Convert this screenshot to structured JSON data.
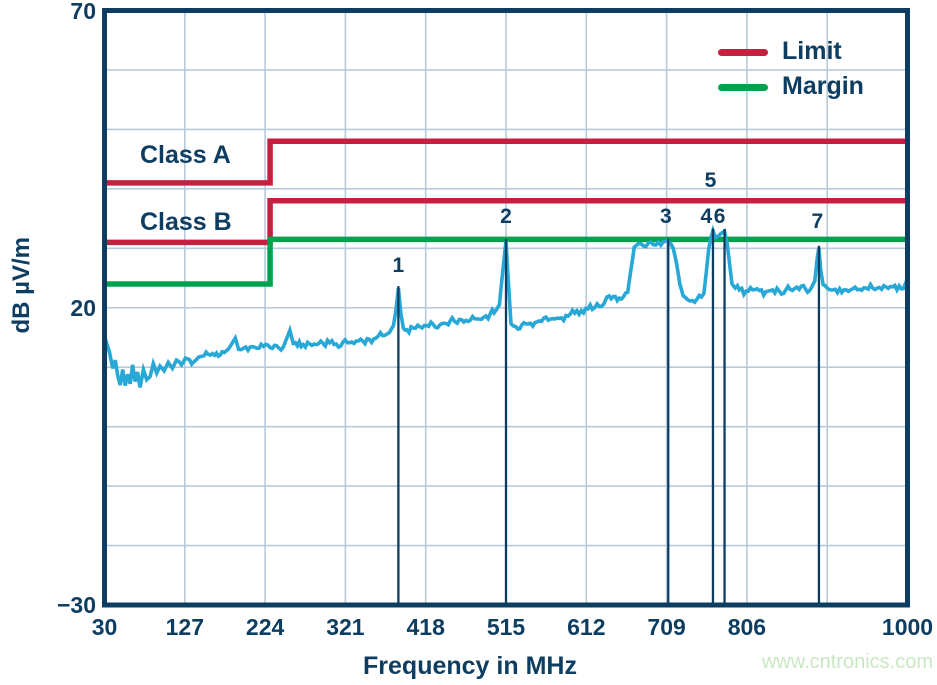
{
  "page": {
    "watermark": "www.cntronics.com"
  },
  "colors": {
    "navy": "#0e3d62",
    "limit_red": "#c5203f",
    "margin_green": "#00a14f",
    "trace_cyan": "#27a8d6",
    "grid": "#b8c9d9",
    "watermark_green": "#c9e8c2"
  },
  "chart_data": {
    "type": "line",
    "title": "",
    "xlabel": "Frequency in MHz",
    "ylabel": "dB µV/m",
    "xlim": [
      30,
      1000
    ],
    "ylim": [
      -30,
      70
    ],
    "grid": true,
    "x_ticks": [
      "30",
      "127",
      "224",
      "321",
      "418",
      "515",
      "612",
      "709",
      "806",
      "1000"
    ],
    "x_tick_mhz": [
      30,
      127,
      224,
      321,
      418,
      515,
      612,
      709,
      806,
      1000
    ],
    "y_ticks": [
      "70",
      "20",
      "−30"
    ],
    "y_tick_db": [
      70,
      20,
      -30
    ],
    "x_grid_mhz": [
      127,
      224,
      321,
      418,
      515,
      612,
      709,
      806,
      903
    ],
    "y_grid_db": [
      60,
      50,
      40,
      30,
      20,
      10,
      0,
      -10,
      -20
    ],
    "legend": {
      "position": "top-right",
      "items": [
        {
          "label": "Limit",
          "color": "#c5203f"
        },
        {
          "label": "Margin",
          "color": "#00a14f"
        }
      ]
    },
    "limit_lines": {
      "break_mhz": 230,
      "class_a": {
        "label": "Class A",
        "db_below": 41,
        "db_above": 48,
        "color": "#c5203f"
      },
      "class_b": {
        "label": "Class B",
        "db_below": 31,
        "db_above": 38,
        "color": "#c5203f"
      },
      "margin": {
        "label": "Margin",
        "db_below": 24,
        "db_above": 31.5,
        "color": "#00a14f"
      }
    },
    "peaks": [
      {
        "n": "1",
        "line_mhz": 385,
        "top_db": 23.3,
        "label_mhz": 385,
        "label_db": 27.0
      },
      {
        "n": "2",
        "line_mhz": 515,
        "top_db": 31.2,
        "label_mhz": 515,
        "label_db": 35.2
      },
      {
        "n": "3",
        "line_mhz": 711,
        "top_db": 31.3,
        "label_mhz": 708,
        "label_db": 35.2
      },
      {
        "n": "4",
        "line_mhz": 765,
        "top_db": 33.0,
        "label_mhz": 757,
        "label_db": 35.3
      },
      {
        "n": "5",
        "line_mhz": null,
        "top_db": null,
        "label_mhz": 762,
        "label_db": 41.3
      },
      {
        "n": "6",
        "line_mhz": 779,
        "top_db": 32.9,
        "label_mhz": 773,
        "label_db": 35.3
      },
      {
        "n": "7",
        "line_mhz": 893,
        "top_db": 30.1,
        "label_mhz": 891,
        "label_db": 34.4
      }
    ],
    "trace": {
      "name": "measured-emissions",
      "color": "#27a8d6",
      "points": [
        [
          30,
          15.3
        ],
        [
          33,
          13.8
        ],
        [
          36,
          12.5
        ],
        [
          40,
          9.8
        ],
        [
          43,
          11.2
        ],
        [
          46,
          8.6
        ],
        [
          49,
          7.0
        ],
        [
          52,
          9.6
        ],
        [
          55,
          6.9
        ],
        [
          58,
          8.8
        ],
        [
          61,
          7.2
        ],
        [
          64,
          10.4
        ],
        [
          67,
          7.6
        ],
        [
          70,
          9.2
        ],
        [
          73,
          6.6
        ],
        [
          77,
          9.6
        ],
        [
          81,
          7.9
        ],
        [
          85,
          8.4
        ],
        [
          89,
          10.6
        ],
        [
          93,
          9.0
        ],
        [
          97,
          10.2
        ],
        [
          102,
          9.4
        ],
        [
          107,
          10.8
        ],
        [
          112,
          9.8
        ],
        [
          117,
          11.2
        ],
        [
          123,
          10.4
        ],
        [
          130,
          11.4
        ],
        [
          138,
          10.9
        ],
        [
          146,
          11.8
        ],
        [
          155,
          12.2
        ],
        [
          163,
          12.0
        ],
        [
          172,
          12.6
        ],
        [
          180,
          13.1
        ],
        [
          188,
          14.9
        ],
        [
          192,
          13.0
        ],
        [
          198,
          13.2
        ],
        [
          206,
          13.4
        ],
        [
          214,
          13.2
        ],
        [
          222,
          13.5
        ],
        [
          230,
          13.3
        ],
        [
          238,
          13.6
        ],
        [
          246,
          13.4
        ],
        [
          254,
          16.2
        ],
        [
          258,
          14.0
        ],
        [
          263,
          13.6
        ],
        [
          270,
          13.8
        ],
        [
          278,
          13.9
        ],
        [
          286,
          13.8
        ],
        [
          294,
          14.0
        ],
        [
          302,
          14.1
        ],
        [
          310,
          13.9
        ],
        [
          318,
          14.2
        ],
        [
          326,
          14.1
        ],
        [
          334,
          14.4
        ],
        [
          342,
          14.4
        ],
        [
          350,
          14.7
        ],
        [
          358,
          14.9
        ],
        [
          366,
          15.3
        ],
        [
          374,
          15.8
        ],
        [
          379,
          17.0
        ],
        [
          382,
          19.5
        ],
        [
          385,
          23.3
        ],
        [
          388,
          19.0
        ],
        [
          391,
          16.6
        ],
        [
          395,
          16.3
        ],
        [
          403,
          16.6
        ],
        [
          411,
          16.8
        ],
        [
          419,
          17.0
        ],
        [
          427,
          17.2
        ],
        [
          435,
          17.1
        ],
        [
          443,
          17.3
        ],
        [
          450,
          18.3
        ],
        [
          456,
          17.4
        ],
        [
          464,
          17.6
        ],
        [
          472,
          17.9
        ],
        [
          480,
          18.1
        ],
        [
          488,
          18.4
        ],
        [
          496,
          19.0
        ],
        [
          503,
          19.6
        ],
        [
          507,
          20.5
        ],
        [
          511,
          26.0
        ],
        [
          515,
          31.2
        ],
        [
          518,
          24.0
        ],
        [
          521,
          17.3
        ],
        [
          527,
          16.8
        ],
        [
          534,
          17.1
        ],
        [
          542,
          17.3
        ],
        [
          550,
          17.5
        ],
        [
          558,
          17.7
        ],
        [
          566,
          17.9
        ],
        [
          574,
          18.1
        ],
        [
          582,
          18.3
        ],
        [
          590,
          18.6
        ],
        [
          598,
          19.1
        ],
        [
          606,
          19.5
        ],
        [
          614,
          19.8
        ],
        [
          622,
          20.0
        ],
        [
          628,
          20.2
        ],
        [
          633,
          20.6
        ],
        [
          637,
          21.8
        ],
        [
          642,
          21.5
        ],
        [
          647,
          21.9
        ],
        [
          652,
          21.6
        ],
        [
          657,
          21.9
        ],
        [
          662,
          22.6
        ],
        [
          666,
          26.5
        ],
        [
          670,
          30.2
        ],
        [
          675,
          30.8
        ],
        [
          681,
          30.4
        ],
        [
          687,
          30.9
        ],
        [
          693,
          30.6
        ],
        [
          699,
          31.0
        ],
        [
          705,
          31.1
        ],
        [
          708,
          31.2
        ],
        [
          711,
          31.3
        ],
        [
          714,
          30.8
        ],
        [
          717,
          30.0
        ],
        [
          721,
          27.5
        ],
        [
          725,
          24.0
        ],
        [
          729,
          22.0
        ],
        [
          734,
          21.4
        ],
        [
          740,
          21.2
        ],
        [
          746,
          21.5
        ],
        [
          751,
          21.8
        ],
        [
          754,
          22.4
        ],
        [
          757,
          26.0
        ],
        [
          760,
          30.0
        ],
        [
          763,
          32.0
        ],
        [
          765,
          33.0
        ],
        [
          768,
          31.8
        ],
        [
          771,
          32.0
        ],
        [
          774,
          32.4
        ],
        [
          777,
          32.7
        ],
        [
          779,
          32.9
        ],
        [
          782,
          31.0
        ],
        [
          785,
          27.5
        ],
        [
          788,
          24.0
        ],
        [
          792,
          23.3
        ],
        [
          797,
          23.0
        ],
        [
          805,
          22.8
        ],
        [
          813,
          23.0
        ],
        [
          821,
          22.9
        ],
        [
          829,
          22.7
        ],
        [
          837,
          23.0
        ],
        [
          845,
          22.8
        ],
        [
          853,
          23.0
        ],
        [
          861,
          22.9
        ],
        [
          869,
          23.1
        ],
        [
          877,
          23.1
        ],
        [
          884,
          23.4
        ],
        [
          888,
          24.5
        ],
        [
          891,
          28.5
        ],
        [
          893,
          30.1
        ],
        [
          895,
          26.5
        ],
        [
          898,
          23.9
        ],
        [
          903,
          23.3
        ],
        [
          910,
          23.0
        ],
        [
          918,
          23.2
        ],
        [
          926,
          23.0
        ],
        [
          934,
          23.2
        ],
        [
          942,
          23.1
        ],
        [
          950,
          23.3
        ],
        [
          958,
          23.3
        ],
        [
          966,
          23.4
        ],
        [
          974,
          23.5
        ],
        [
          982,
          23.5
        ],
        [
          990,
          23.7
        ],
        [
          1000,
          23.6
        ]
      ]
    }
  }
}
